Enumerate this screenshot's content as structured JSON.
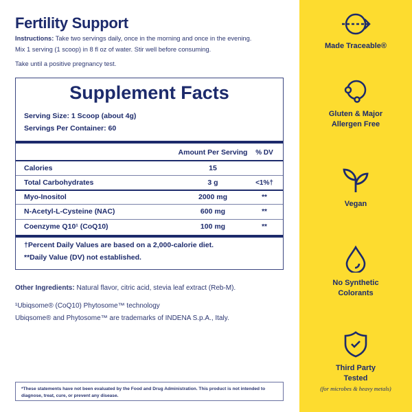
{
  "title": "Fertility Support",
  "instructions": {
    "label": "Instructions:",
    "line1": " Take two servings daily, once in the morning and once in the evening.",
    "line2": "Mix 1 serving (1 scoop) in 8 fl oz of water. Stir well before consuming.",
    "line3": "Take until a positive pregnancy test."
  },
  "facts": {
    "title": "Supplement Facts",
    "serving_size": "Serving Size: 1 Scoop (about 4g)",
    "servings_per_container": "Servings Per Container: 60",
    "headers": {
      "amount": "Amount Per Serving",
      "dv": "% DV"
    },
    "rows": [
      {
        "name": "Calories",
        "amount": "15",
        "dv": ""
      },
      {
        "name": "Total Carbohydrates",
        "amount": "3 g",
        "dv": "<1%†"
      },
      {
        "name": "Myo-Inositol",
        "amount": "2000 mg",
        "dv": "**"
      },
      {
        "name": "N-Acetyl-L-Cysteine (NAC)",
        "amount": "600 mg",
        "dv": "**"
      },
      {
        "name": "Coenzyme Q10¹ (CoQ10)",
        "amount": "100 mg",
        "dv": "**"
      }
    ],
    "footnote1": "†Percent Daily Values are based on a 2,000-calorie diet.",
    "footnote2": "**Daily Value (DV) not established."
  },
  "other": {
    "label": "Other Ingredients:",
    "text": " Natural flavor, citric acid, stevia leaf extract (Reb-M).",
    "note1": "¹Ubiqsome® (CoQ10) Phytosome™ technology",
    "note2": "Ubiqsome® and Phytosome™ are trademarks of  INDENA  S.p.A., Italy."
  },
  "disclaimer": "*These statements have not been evaluated by the Food and Drug Administration. This product is not intended to diagnose, treat, cure, or prevent any disease.",
  "features": [
    {
      "icon": "traceable-arrow-icon",
      "label": "Made Traceable®"
    },
    {
      "icon": "allergen-free-icon",
      "label": "Gluten & Major",
      "label2": "Allergen Free"
    },
    {
      "icon": "sprout-icon",
      "label": "Vegan"
    },
    {
      "icon": "drop-icon",
      "label": "No Synthetic",
      "label2": "Colorants"
    },
    {
      "icon": "shield-check-icon",
      "label": "Third Party",
      "label2": "Tested",
      "sub": "(for microbes & heavy metals)"
    }
  ],
  "colors": {
    "navy": "#1c2a6b",
    "yellow": "#fddc2f"
  }
}
